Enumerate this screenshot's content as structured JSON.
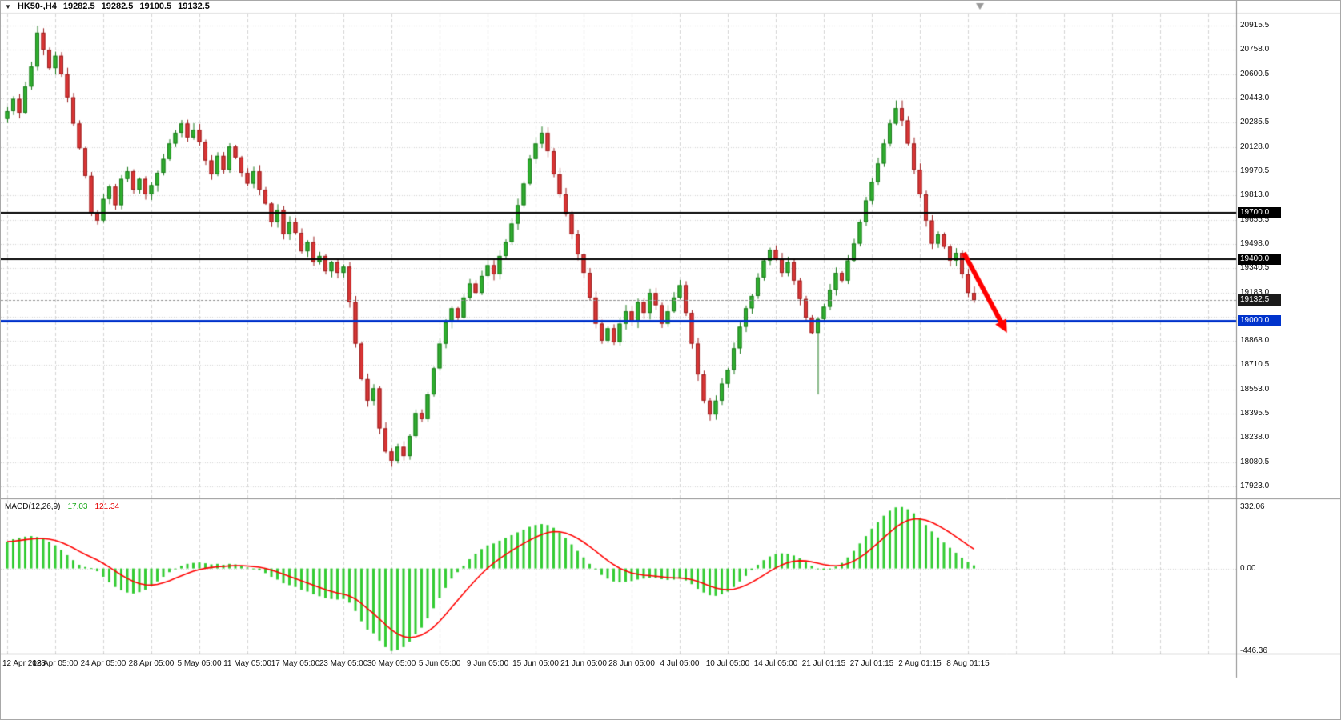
{
  "header": {
    "icons": {
      "collapse_arrow": "▼"
    },
    "symbol_period": "HK50-,H4",
    "ohlc": {
      "open": "19282.5",
      "high": "19282.5",
      "low": "19100.5",
      "close": "19132.5"
    }
  },
  "indicator": {
    "label": "MACD(12,26,9)",
    "macd_value": "17.03",
    "signal_value": "121.34"
  },
  "price_axis": {
    "ticks": [
      20915.5,
      20758.0,
      20600.5,
      20443.0,
      20285.5,
      20128.0,
      19970.5,
      19813.0,
      19655.5,
      19498.0,
      19340.5,
      19183.0,
      19025.5,
      18868.0,
      18710.5,
      18553.0,
      18395.5,
      18238.0,
      18080.5,
      17923.0
    ]
  },
  "macd_axis": {
    "ticks": [
      {
        "label": "332.06",
        "value": 332.06
      },
      {
        "label": "0.00",
        "value": 0
      },
      {
        "label": "-446.36",
        "value": -446.36
      }
    ]
  },
  "time_axis": {
    "labels": [
      {
        "text": "12 Apr 2023",
        "index": 0
      },
      {
        "text": "18 Apr 05:00",
        "index": 8
      },
      {
        "text": "24 Apr 05:00",
        "index": 16
      },
      {
        "text": "28 Apr 05:00",
        "index": 24
      },
      {
        "text": "5 May 05:00",
        "index": 32
      },
      {
        "text": "11 May 05:00",
        "index": 40
      },
      {
        "text": "17 May 05:00",
        "index": 48
      },
      {
        "text": "23 May 05:00",
        "index": 56
      },
      {
        "text": "30 May 05:00",
        "index": 64
      },
      {
        "text": "5 Jun 05:00",
        "index": 72
      },
      {
        "text": "9 Jun 05:00",
        "index": 80
      },
      {
        "text": "15 Jun 05:00",
        "index": 88
      },
      {
        "text": "21 Jun 05:00",
        "index": 96
      },
      {
        "text": "28 Jun 05:00",
        "index": 104
      },
      {
        "text": "4 Jul 05:00",
        "index": 112
      },
      {
        "text": "10 Jul 05:00",
        "index": 120
      },
      {
        "text": "14 Jul 05:00",
        "index": 128
      },
      {
        "text": "21 Jul 01:15",
        "index": 136
      },
      {
        "text": "27 Jul 01:15",
        "index": 144
      },
      {
        "text": "2 Aug 01:15",
        "index": 152
      },
      {
        "text": "8 Aug 01:15",
        "index": 160
      }
    ]
  },
  "levels": {
    "hlines": [
      {
        "price": 19700.0,
        "label": "19700.0",
        "color": "#000000",
        "width": 2
      },
      {
        "price": 19400.0,
        "label": "19400.0",
        "color": "#000000",
        "width": 2
      },
      {
        "price": 19000.0,
        "label": "19000.0",
        "color": "#0033cc",
        "width": 3
      }
    ],
    "current_price": {
      "price": 19132.5,
      "label": "19132.5",
      "badge_color": "#1a1a1a",
      "line_color": "#909090"
    }
  },
  "chart_data": {
    "type": "candlestick",
    "symbol": "HK50-",
    "timeframe": "H4",
    "price_axis_range": {
      "min": 17845,
      "max": 20994
    },
    "macd_axis_range": {
      "min": -460,
      "max": 370
    },
    "gridline_every": 8,
    "first_open": 20310,
    "closes": [
      20360,
      20440,
      20350,
      20520,
      20650,
      20870,
      20760,
      20640,
      20720,
      20600,
      20450,
      20280,
      20120,
      19940,
      19700,
      19650,
      19790,
      19870,
      19750,
      19920,
      19970,
      19850,
      19920,
      19820,
      19880,
      19960,
      20050,
      20150,
      20220,
      20280,
      20190,
      20240,
      20160,
      20040,
      19950,
      20070,
      19980,
      20130,
      20060,
      19960,
      19890,
      19970,
      19850,
      19760,
      19640,
      19720,
      19560,
      19640,
      19570,
      19450,
      19510,
      19380,
      19420,
      19320,
      19380,
      19310,
      19350,
      19120,
      18850,
      18620,
      18480,
      18560,
      18300,
      18150,
      18090,
      18180,
      18120,
      18250,
      18400,
      18360,
      18520,
      18690,
      18850,
      18990,
      19080,
      19020,
      19150,
      19240,
      19180,
      19290,
      19360,
      19300,
      19420,
      19510,
      19630,
      19750,
      19890,
      20050,
      20150,
      20220,
      20100,
      19950,
      19820,
      19690,
      19560,
      19430,
      19310,
      19150,
      18980,
      18870,
      18950,
      18860,
      18980,
      19060,
      18990,
      19120,
      19050,
      19180,
      19100,
      18980,
      19060,
      19150,
      19230,
      19050,
      18850,
      18650,
      18480,
      18390,
      18480,
      18590,
      18680,
      18820,
      18960,
      19080,
      19160,
      19280,
      19390,
      19460,
      19400,
      19310,
      19380,
      19260,
      19140,
      19020,
      18920,
      19010,
      19090,
      19200,
      19310,
      19260,
      19390,
      19500,
      19640,
      19780,
      19900,
      20020,
      20150,
      20280,
      20380,
      20300,
      20150,
      19980,
      19820,
      19650,
      19500,
      19560,
      19480,
      19390,
      19440,
      19300,
      19180,
      19132.5
    ],
    "macd_histogram": [
      145,
      158,
      166,
      172,
      175,
      170,
      160,
      145,
      125,
      100,
      72,
      45,
      20,
      8,
      2,
      -15,
      -45,
      -75,
      -100,
      -118,
      -130,
      -135,
      -128,
      -115,
      -95,
      -70,
      -45,
      -20,
      0,
      15,
      25,
      30,
      32,
      28,
      22,
      25,
      20,
      25,
      22,
      15,
      5,
      0,
      -10,
      -25,
      -45,
      -60,
      -80,
      -90,
      -100,
      -115,
      -125,
      -140,
      -150,
      -160,
      -165,
      -168,
      -165,
      -185,
      -230,
      -285,
      -330,
      -350,
      -390,
      -425,
      -446,
      -440,
      -425,
      -395,
      -355,
      -320,
      -270,
      -215,
      -160,
      -105,
      -55,
      -20,
      15,
      50,
      80,
      105,
      125,
      135,
      150,
      165,
      180,
      195,
      210,
      225,
      235,
      240,
      235,
      220,
      195,
      165,
      130,
      95,
      60,
      25,
      -5,
      -35,
      -55,
      -70,
      -75,
      -72,
      -68,
      -60,
      -55,
      -50,
      -52,
      -58,
      -62,
      -60,
      -55,
      -65,
      -85,
      -110,
      -130,
      -145,
      -148,
      -140,
      -125,
      -100,
      -70,
      -40,
      -10,
      20,
      45,
      65,
      78,
      82,
      80,
      70,
      55,
      35,
      15,
      0,
      -8,
      -5,
      10,
      30,
      60,
      95,
      135,
      175,
      215,
      250,
      285,
      312,
      330,
      332,
      320,
      298,
      268,
      235,
      200,
      168,
      140,
      112,
      85,
      58,
      35,
      17.03
    ],
    "signal_period": 9,
    "wick_overrides": {
      "5": {
        "high": 20915.5
      },
      "64": {
        "low": 18050
      },
      "89": {
        "high": 20260
      },
      "117": {
        "low": 18350
      },
      "135": {
        "low": 18520
      },
      "148": {
        "high": 20430
      },
      "149": {
        "high": 20430
      }
    },
    "colors": {
      "up": "#2fae2f",
      "up_dark": "#1c7a1c",
      "down": "#d93535",
      "down_dark": "#9a1f1f",
      "histogram": "#33cc33",
      "signal": "#ff0000",
      "grid": "#d4d4d4"
    },
    "annotations": [
      {
        "type": "arrow",
        "color": "#ff0000",
        "from_index": 159.3,
        "from_price": 19440,
        "to_index": 166.5,
        "to_price": 18920,
        "width": 6
      }
    ]
  }
}
